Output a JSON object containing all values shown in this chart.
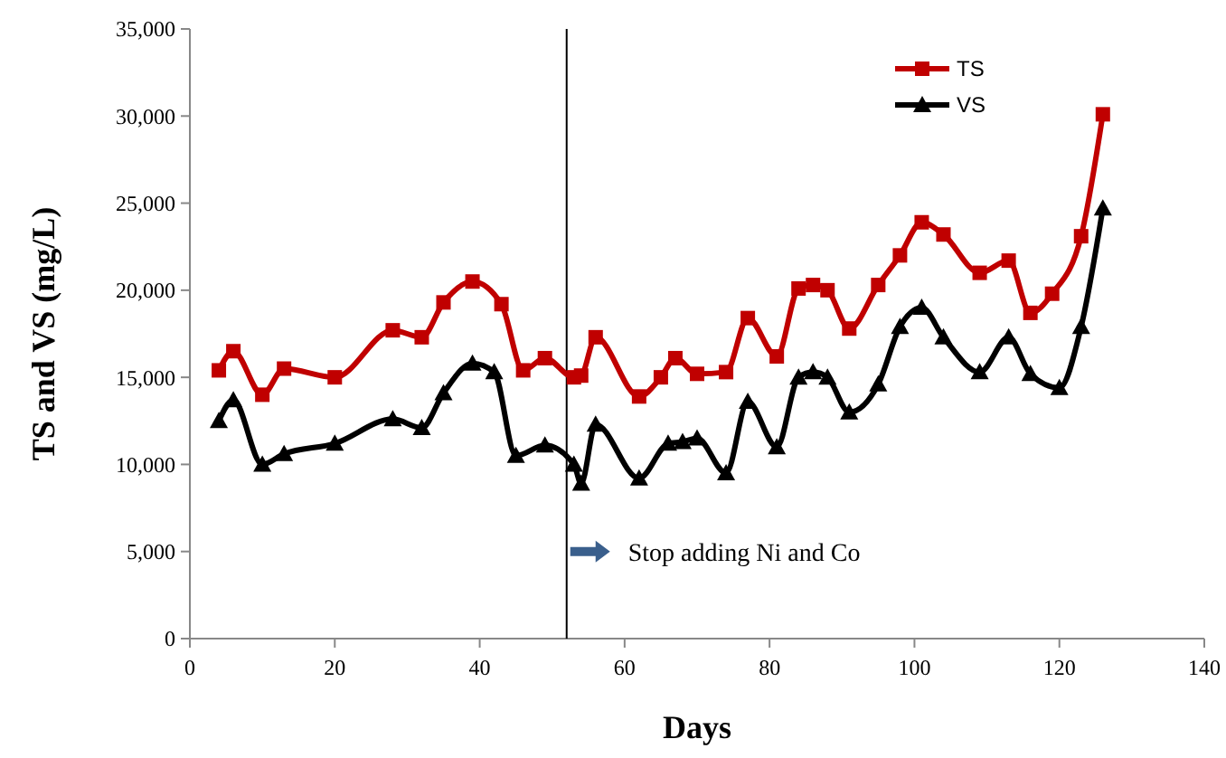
{
  "chart_data": {
    "type": "line",
    "xlabel": "Days",
    "ylabel": "TS and VS (mg/L)",
    "xlim": [
      0,
      140
    ],
    "xticks": [
      0,
      20,
      40,
      60,
      80,
      100,
      120,
      140
    ],
    "ylim": [
      0,
      35000
    ],
    "yticks": [
      {
        "value": 0,
        "label": "0"
      },
      {
        "value": 5000,
        "label": "5,000"
      },
      {
        "value": 10000,
        "label": "10,000"
      },
      {
        "value": 15000,
        "label": "15,000"
      },
      {
        "value": 20000,
        "label": "20,000"
      },
      {
        "value": 25000,
        "label": "25,000"
      },
      {
        "value": 30000,
        "label": "30,000"
      },
      {
        "value": 35000,
        "label": "35,000"
      }
    ],
    "grid": false,
    "legend": "top right",
    "line_style": "solid",
    "series": [
      {
        "name": "TS",
        "color": "#c00000",
        "marker": "square",
        "x": [
          4,
          6,
          10,
          13,
          20,
          28,
          32,
          35,
          39,
          43,
          46,
          49,
          53,
          54,
          56,
          62,
          65,
          67,
          70,
          74,
          77,
          81,
          84,
          86,
          88,
          91,
          95,
          98,
          101,
          104,
          109,
          113,
          116,
          119,
          123,
          126
        ],
        "values": [
          15400,
          16500,
          14000,
          15500,
          15000,
          17700,
          17300,
          19300,
          20500,
          19200,
          15400,
          16100,
          15000,
          15100,
          17300,
          13900,
          15000,
          16100,
          15200,
          15300,
          18400,
          16200,
          20100,
          20300,
          20000,
          17800,
          20300,
          22000,
          23900,
          23200,
          21000,
          21700,
          18700,
          19800,
          23100,
          30100
        ]
      },
      {
        "name": "VS",
        "color": "#000000",
        "marker": "triangle",
        "x": [
          4,
          6,
          10,
          13,
          20,
          28,
          32,
          35,
          39,
          42,
          45,
          49,
          53,
          54,
          56,
          62,
          66,
          68,
          70,
          74,
          77,
          81,
          84,
          86,
          88,
          91,
          95,
          98,
          101,
          104,
          109,
          113,
          116,
          120,
          123,
          126
        ],
        "values": [
          12500,
          13700,
          10000,
          10600,
          11200,
          12600,
          12100,
          14100,
          15800,
          15300,
          10500,
          11100,
          10000,
          8900,
          12300,
          9200,
          11200,
          11300,
          11500,
          9500,
          13600,
          11000,
          15000,
          15300,
          15000,
          13000,
          14600,
          17900,
          19000,
          17300,
          15300,
          17300,
          15200,
          14400,
          17900,
          24700
        ]
      }
    ],
    "ref_lines": [
      {
        "axis": "x",
        "value": 52,
        "color": "#000000"
      }
    ],
    "annotations": [
      {
        "text": "Stop adding Ni and Co",
        "x": 52,
        "y": 5000
      }
    ]
  }
}
